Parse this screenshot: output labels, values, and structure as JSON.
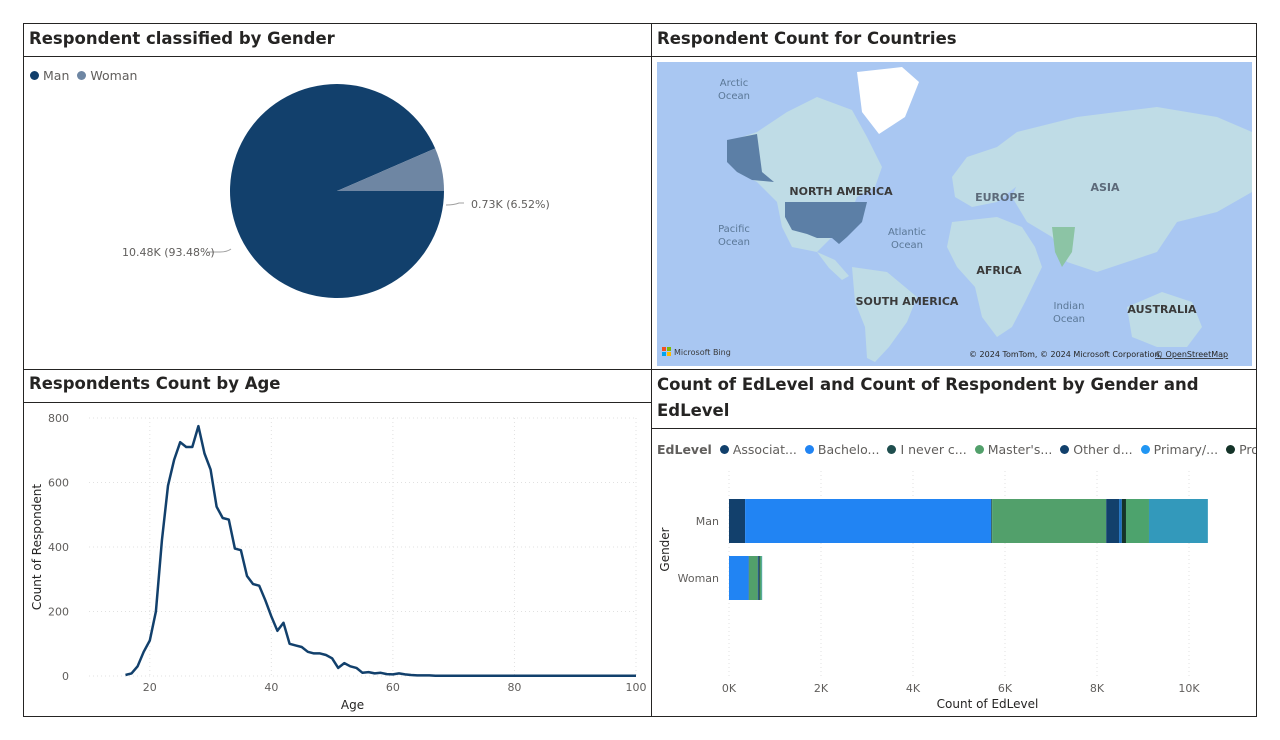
{
  "back_button": {
    "glyph": "←"
  },
  "gender_panel": {
    "title": "Respondent classified by Gender",
    "legend": [
      {
        "label": "Man",
        "color": "#12406C"
      },
      {
        "label": "Woman",
        "color": "#6E86A3"
      }
    ],
    "chart_data": {
      "type": "pie",
      "slices": [
        {
          "label": "Man",
          "value": 10.48,
          "percent": 93.48,
          "color": "#12406C"
        },
        {
          "label": "Woman",
          "value": 0.73,
          "percent": 6.52,
          "color": "#6E86A3"
        }
      ]
    },
    "labels": {
      "man": "10.48K (93.48%)",
      "woman": "0.73K (6.52%)"
    }
  },
  "map_panel": {
    "title": "Respondent Count for Countries",
    "labels": {
      "arctic": "Arctic\nOcean",
      "north_america": "NORTH AMERICA",
      "europe": "EUROPE",
      "asia": "ASIA",
      "pacific": "Pacific\nOcean",
      "atlantic": "Atlantic\nOcean",
      "africa": "AFRICA",
      "south_america": "SOUTH AMERICA",
      "indian": "Indian\nOcean",
      "australia": "AUSTRALIA"
    },
    "bing_logo": "Microsoft Bing",
    "copyright": "© 2024 TomTom, © 2024 Microsoft Corporation,",
    "osm_link": "© OpenStreetMap",
    "colors": {
      "ocean": "#A9C7F2",
      "land": "#BFDCE6",
      "highlight": "#5C7FA6"
    }
  },
  "age_panel": {
    "title": "Respondents Count by Age",
    "chart_data": {
      "type": "line",
      "xlabel": "Age",
      "ylabel": "Count of Respondent",
      "xlim": [
        10,
        100
      ],
      "ylim": [
        0,
        800
      ],
      "xticks": [
        20,
        40,
        60,
        80,
        100
      ],
      "yticks": [
        0,
        200,
        400,
        600,
        800
      ],
      "color": "#12406C",
      "x": [
        16,
        17,
        18,
        19,
        20,
        21,
        22,
        23,
        24,
        25,
        26,
        27,
        28,
        29,
        30,
        31,
        32,
        33,
        34,
        35,
        36,
        37,
        38,
        39,
        40,
        41,
        42,
        43,
        44,
        45,
        46,
        47,
        48,
        49,
        50,
        51,
        52,
        53,
        54,
        55,
        56,
        57,
        58,
        59,
        60,
        61,
        62,
        63,
        64,
        65,
        66,
        67,
        68,
        69,
        70,
        75,
        80,
        85,
        90,
        95,
        100
      ],
      "y": [
        3,
        8,
        30,
        75,
        110,
        200,
        420,
        590,
        670,
        725,
        710,
        710,
        775,
        690,
        640,
        525,
        490,
        485,
        395,
        390,
        310,
        285,
        280,
        235,
        185,
        140,
        165,
        100,
        95,
        90,
        75,
        70,
        70,
        65,
        55,
        25,
        40,
        30,
        25,
        10,
        12,
        8,
        10,
        6,
        5,
        8,
        5,
        3,
        2,
        2,
        2,
        1,
        1,
        1,
        1,
        1,
        1,
        1,
        1,
        1,
        1
      ]
    }
  },
  "edlevel_panel": {
    "title": "Count of EdLevel and Count of Respondent by Gender and EdLevel",
    "legend_title": "EdLevel",
    "legend": [
      {
        "label": "Associat...",
        "color": "#12406C"
      },
      {
        "label": "Bachelo...",
        "color": "#2184F3"
      },
      {
        "label": "I never c...",
        "color": "#1F4E4E"
      },
      {
        "label": "Master's...",
        "color": "#52A06B"
      },
      {
        "label": "Other d...",
        "color": "#12406C"
      },
      {
        "label": "Primary/...",
        "color": "#2196F3"
      },
      {
        "label": "Professi...",
        "color": "#143328"
      }
    ],
    "chart_data": {
      "type": "bar",
      "orientation": "horizontal",
      "stacked": true,
      "categories": [
        "Man",
        "Woman"
      ],
      "xlabel": "Count of EdLevel",
      "ylabel": "Gender",
      "xlim": [
        0,
        10500
      ],
      "xticks": [
        "0K",
        "2K",
        "4K",
        "6K",
        "8K",
        "10K"
      ],
      "xtick_values": [
        0,
        2000,
        4000,
        6000,
        8000,
        10000
      ],
      "series": [
        {
          "color": "#12406C",
          "values": [
            350,
            0
          ]
        },
        {
          "color": "#2184F3",
          "values": [
            5350,
            430
          ]
        },
        {
          "color": "#1F4E4E",
          "values": [
            20,
            5
          ]
        },
        {
          "color": "#52A06B",
          "values": [
            2480,
            190
          ]
        },
        {
          "color": "#12406C",
          "values": [
            280,
            20
          ]
        },
        {
          "color": "#1B6FC1",
          "values": [
            60,
            5
          ]
        },
        {
          "color": "#143328",
          "values": [
            90,
            20
          ]
        },
        {
          "color": "#4DA36D",
          "values": [
            500,
            40
          ]
        },
        {
          "color": "#3399BB",
          "values": [
            1280,
            10
          ]
        }
      ]
    }
  }
}
